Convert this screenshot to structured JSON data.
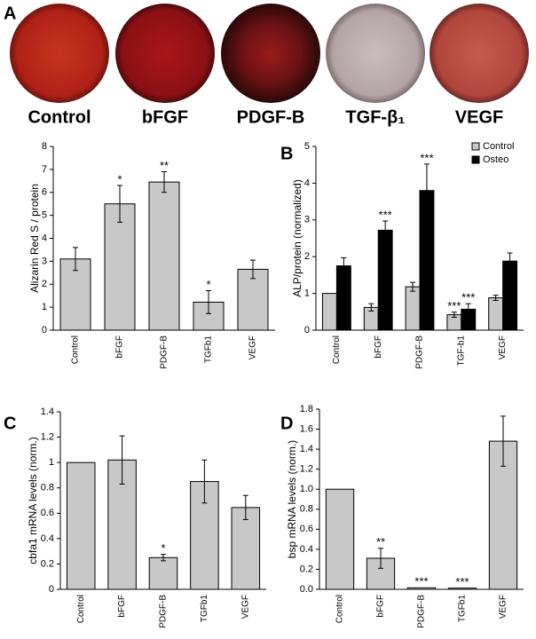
{
  "panel_labels": [
    "A",
    "B",
    "C",
    "D"
  ],
  "dish_labels": [
    "Control",
    "bFGF",
    "PDGF-B",
    "TGF-β₁",
    "VEGF"
  ],
  "chart_data": [
    {
      "type": "bar",
      "ylabel": "Alizarin Red S / protein",
      "categories": [
        "Control",
        "bFGF",
        "PDGF-B",
        "TGFb1",
        "VEGF"
      ],
      "values": [
        3.1,
        5.5,
        6.45,
        1.22,
        2.65
      ],
      "errors": [
        0.5,
        0.8,
        0.45,
        0.5,
        0.4
      ],
      "annotations": [
        null,
        "*",
        "**",
        "*",
        null
      ],
      "color": "#c8c8c8",
      "ylim": [
        0,
        8
      ],
      "yticks": [
        0,
        1,
        2,
        3,
        4,
        5,
        6,
        7,
        8
      ]
    },
    {
      "type": "bar",
      "ylabel": "ALP/protein (normalized)",
      "categories": [
        "Control",
        "bFGF",
        "PDGF-B",
        "TGF-b1",
        "VEGF"
      ],
      "series": [
        {
          "name": "Control",
          "color": "#c8c8c8",
          "values": [
            1.0,
            0.62,
            1.18,
            0.42,
            0.88
          ],
          "errors": [
            null,
            0.1,
            0.12,
            0.07,
            0.07
          ],
          "annotations": [
            null,
            null,
            null,
            "***",
            null
          ]
        },
        {
          "name": "Osteo",
          "color": "#000000",
          "values": [
            1.75,
            2.72,
            3.8,
            0.57,
            1.88
          ],
          "errors": [
            0.22,
            0.25,
            0.72,
            0.15,
            0.22
          ],
          "annotations": [
            null,
            "***",
            "***",
            "***",
            null
          ]
        }
      ],
      "legend": "upper right",
      "ylim": [
        0,
        5
      ],
      "yticks": [
        0,
        1,
        2,
        3,
        4,
        5
      ]
    },
    {
      "type": "bar",
      "ylabel": "cbfa1 mRNA levels (norm.)",
      "categories": [
        "Control",
        "bFGF",
        "PDGF-B",
        "TGFb1",
        "VEGF"
      ],
      "values": [
        1.0,
        1.02,
        0.25,
        0.85,
        0.645
      ],
      "errors": [
        null,
        0.19,
        0.025,
        0.17,
        0.095
      ],
      "annotations": [
        null,
        null,
        "*",
        null,
        null
      ],
      "color": "#c8c8c8",
      "ylim": [
        0,
        1.4
      ],
      "yticks": [
        0,
        0.2,
        0.4,
        0.6,
        0.8,
        1,
        1.2,
        1.4
      ]
    },
    {
      "type": "bar",
      "ylabel": "bsp mRNA levels (norm.)",
      "categories": [
        "Control",
        "bFGF",
        "PDGF-B",
        "TGFb1",
        "VEGF"
      ],
      "values": [
        1.0,
        0.31,
        0.015,
        0.012,
        1.48
      ],
      "errors": [
        null,
        0.1,
        null,
        null,
        0.25
      ],
      "annotations": [
        null,
        "**",
        "***",
        "***",
        null
      ],
      "color": "#c8c8c8",
      "ylim": [
        0,
        1.8
      ],
      "yticks": [
        {
          "value": 0,
          "label": "0.0"
        },
        0.2,
        0.4,
        0.6,
        0.8,
        {
          "value": 1,
          "label": "1.0"
        },
        1.2,
        1.4,
        1.6,
        1.8
      ]
    }
  ]
}
